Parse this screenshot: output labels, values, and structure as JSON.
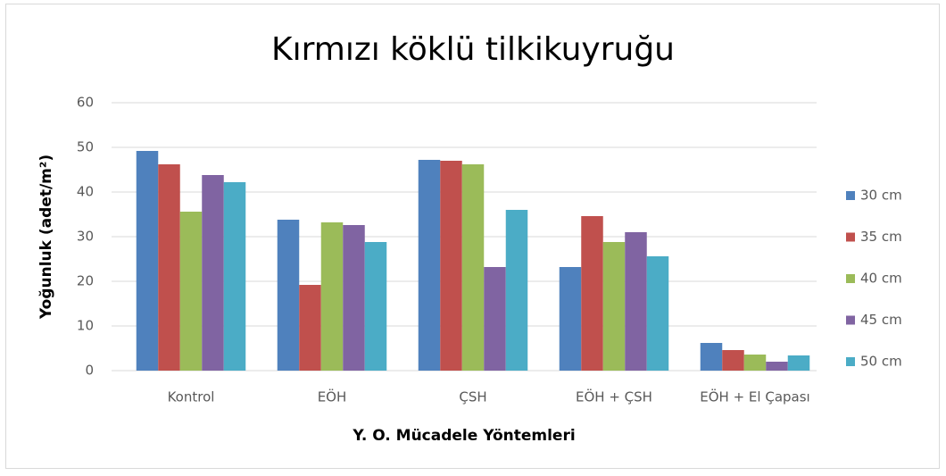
{
  "chart_data": {
    "type": "bar",
    "title": "Kırmızı köklü tilkikuyruğu",
    "x_label": "Y. O. Mücadele Yöntemleri",
    "y_label": "Yoğunluk (adet/m²)",
    "categories": [
      "Kontrol",
      "EÖH",
      "ÇSH",
      "EÖH + ÇSH",
      "EÖH + El Çapası"
    ],
    "series": [
      {
        "name": "30 cm",
        "color": "#4f81bd",
        "values": [
          49.2,
          33.8,
          47.2,
          23.2,
          6.2
        ]
      },
      {
        "name": "35 cm",
        "color": "#c0504d",
        "values": [
          46.2,
          19.2,
          47,
          34.6,
          4.6
        ]
      },
      {
        "name": "40 cm",
        "color": "#9bbb59",
        "values": [
          35.6,
          33.2,
          46.2,
          28.8,
          3.6
        ]
      },
      {
        "name": "45 cm",
        "color": "#8064a2",
        "values": [
          43.8,
          32.6,
          23.2,
          31,
          2
        ]
      },
      {
        "name": "50 cm",
        "color": "#4bacc6",
        "values": [
          42.2,
          28.8,
          36,
          25.6,
          3.4
        ]
      }
    ],
    "ylim": [
      0,
      60
    ],
    "yticks": [
      0,
      10,
      20,
      30,
      40,
      50,
      60
    ],
    "grid": true,
    "legend": "right"
  }
}
